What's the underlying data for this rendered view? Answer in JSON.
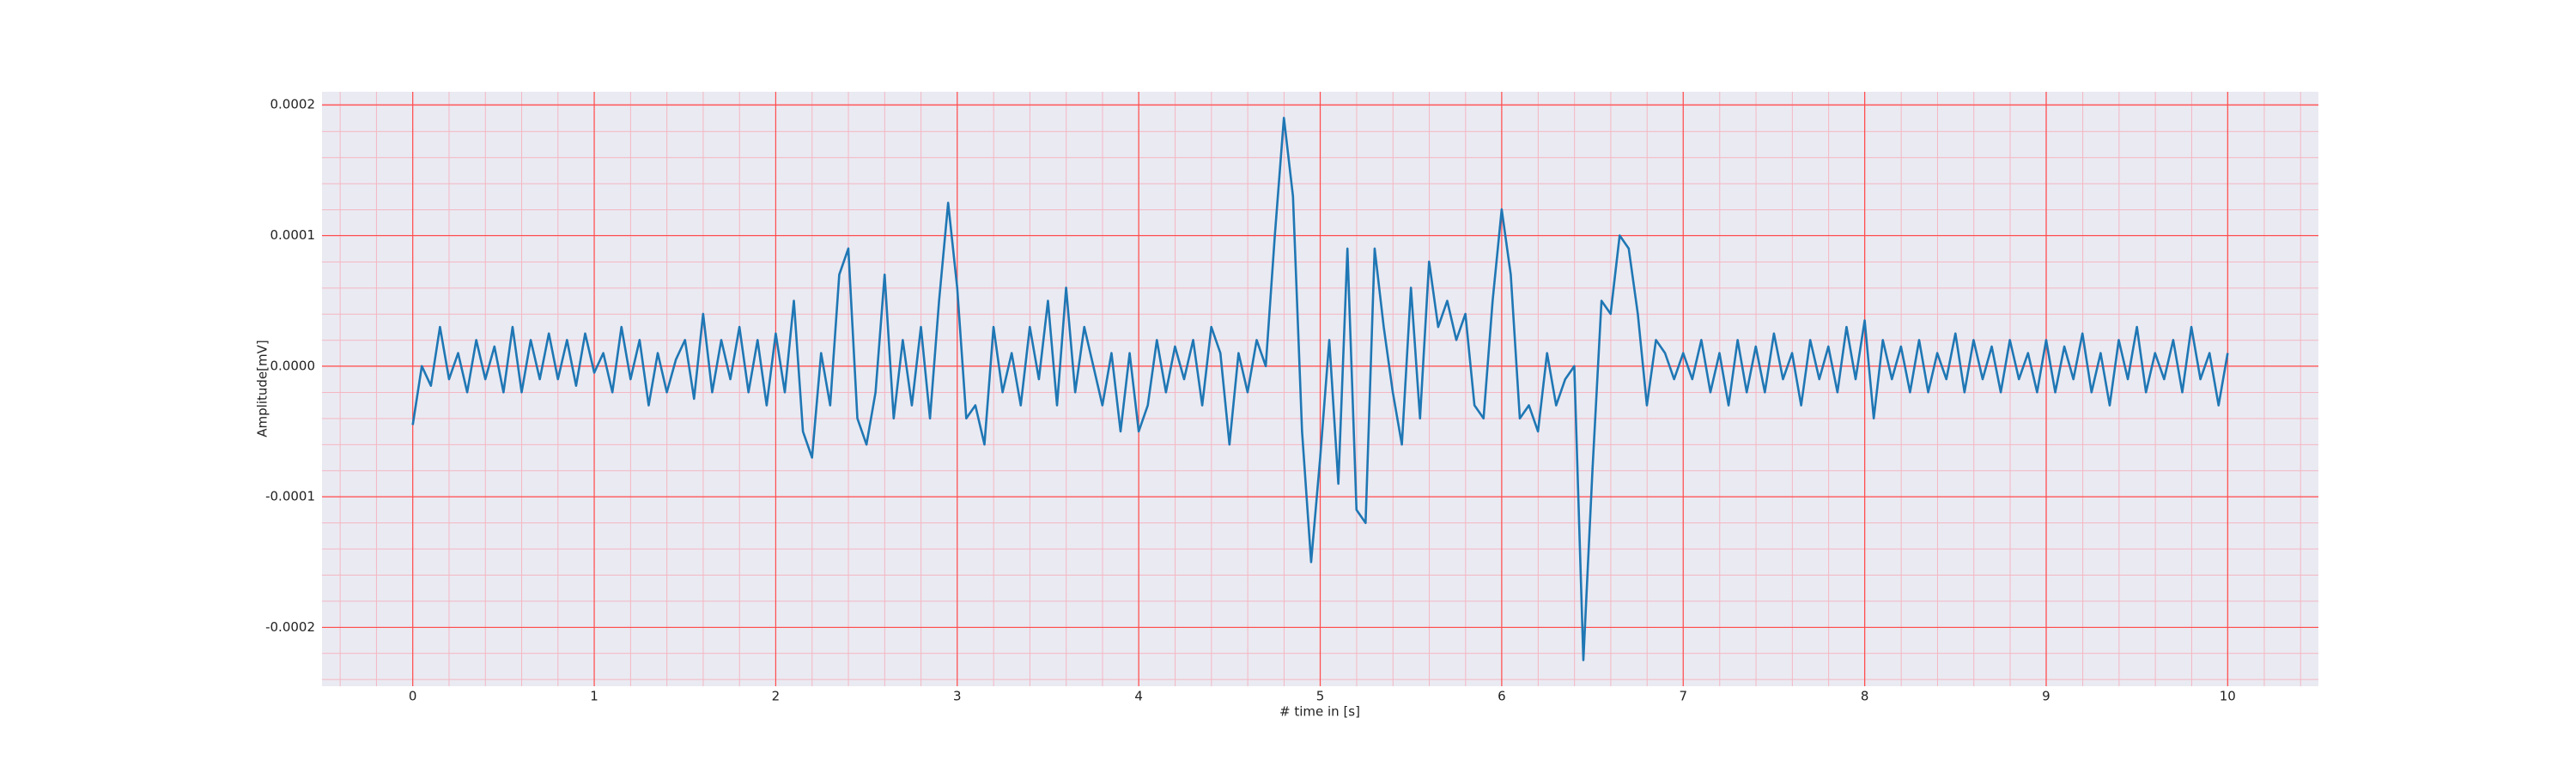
{
  "chart_data": {
    "type": "line",
    "xlabel": "# time in [s]",
    "ylabel": "Amplitude[mV]",
    "color": "#1f77b4",
    "grid": true,
    "grid_color": "#ff4d4d",
    "xlim": [
      -0.5,
      10.5
    ],
    "ylim": [
      -0.000245,
      0.00021
    ],
    "xticks": [
      0,
      1,
      2,
      3,
      4,
      5,
      6,
      7,
      8,
      9,
      10
    ],
    "yticks": [
      0.0002,
      0.0001,
      {
        "value": 0,
        "label": "0.0000"
      },
      -0.0001,
      -0.0002
    ],
    "x": [
      0,
      0.05,
      0.1,
      0.15,
      0.2,
      0.25,
      0.3,
      0.35,
      0.4,
      0.45,
      0.5,
      0.55,
      0.6,
      0.65,
      0.7,
      0.75,
      0.8,
      0.85,
      0.9,
      0.95,
      1,
      1.05,
      1.1,
      1.15,
      1.2,
      1.25,
      1.3,
      1.35,
      1.4,
      1.45,
      1.5,
      1.55,
      1.6,
      1.65,
      1.7,
      1.75,
      1.8,
      1.85,
      1.9,
      1.95,
      2,
      2.05,
      2.1,
      2.15,
      2.2,
      2.25,
      2.3,
      2.35,
      2.4,
      2.45,
      2.5,
      2.55,
      2.6,
      2.65,
      2.7,
      2.75,
      2.8,
      2.85,
      2.9,
      2.95,
      3,
      3.05,
      3.1,
      3.15,
      3.2,
      3.25,
      3.3,
      3.35,
      3.4,
      3.45,
      3.5,
      3.55,
      3.6,
      3.65,
      3.7,
      3.75,
      3.8,
      3.85,
      3.9,
      3.95,
      4,
      4.05,
      4.1,
      4.15,
      4.2,
      4.25,
      4.3,
      4.35,
      4.4,
      4.45,
      4.5,
      4.55,
      4.6,
      4.65,
      4.7,
      4.75,
      4.8,
      4.85,
      4.9,
      4.95,
      5,
      5.05,
      5.1,
      5.15,
      5.2,
      5.25,
      5.3,
      5.35,
      5.4,
      5.45,
      5.5,
      5.55,
      5.6,
      5.65,
      5.7,
      5.75,
      5.8,
      5.85,
      5.9,
      5.95,
      6,
      6.05,
      6.1,
      6.15,
      6.2,
      6.25,
      6.3,
      6.35,
      6.4,
      6.45,
      6.5,
      6.55,
      6.6,
      6.65,
      6.7,
      6.75,
      6.8,
      6.85,
      6.9,
      6.95,
      7,
      7.05,
      7.1,
      7.15,
      7.2,
      7.25,
      7.3,
      7.35,
      7.4,
      7.45,
      7.5,
      7.55,
      7.6,
      7.65,
      7.7,
      7.75,
      7.8,
      7.85,
      7.9,
      7.95,
      8,
      8.05,
      8.1,
      8.15,
      8.2,
      8.25,
      8.3,
      8.35,
      8.4,
      8.45,
      8.5,
      8.55,
      8.6,
      8.65,
      8.7,
      8.75,
      8.8,
      8.85,
      8.9,
      8.95,
      9,
      9.05,
      9.1,
      9.15,
      9.2,
      9.25,
      9.3,
      9.35,
      9.4,
      9.45,
      9.5,
      9.55,
      9.6,
      9.65,
      9.7,
      9.75,
      9.8,
      9.85,
      9.9,
      9.95,
      10
    ],
    "values": [
      -4.5e-05,
      0,
      -1.5e-05,
      3e-05,
      -1e-05,
      1e-05,
      -2e-05,
      2e-05,
      -1e-05,
      1.5e-05,
      -2e-05,
      3e-05,
      -2e-05,
      2e-05,
      -1e-05,
      2.5e-05,
      -1e-05,
      2e-05,
      -1.5e-05,
      2.5e-05,
      -5e-06,
      1e-05,
      -2e-05,
      3e-05,
      -1e-05,
      2e-05,
      -3e-05,
      1e-05,
      -2e-05,
      5e-06,
      2e-05,
      -2.5e-05,
      4e-05,
      -2e-05,
      2e-05,
      -1e-05,
      3e-05,
      -2e-05,
      2e-05,
      -3e-05,
      2.5e-05,
      -2e-05,
      5e-05,
      -5e-05,
      -7e-05,
      1e-05,
      -3e-05,
      7e-05,
      9e-05,
      -4e-05,
      -6e-05,
      -2e-05,
      7e-05,
      -4e-05,
      2e-05,
      -3e-05,
      3e-05,
      -4e-05,
      5e-05,
      0.000125,
      6e-05,
      -4e-05,
      -3e-05,
      -6e-05,
      3e-05,
      -2e-05,
      1e-05,
      -3e-05,
      3e-05,
      -1e-05,
      5e-05,
      -3e-05,
      6e-05,
      -2e-05,
      3e-05,
      0,
      -3e-05,
      1e-05,
      -5e-05,
      1e-05,
      -5e-05,
      -3e-05,
      2e-05,
      -2e-05,
      1.5e-05,
      -1e-05,
      2e-05,
      -3e-05,
      3e-05,
      1e-05,
      -6e-05,
      1e-05,
      -2e-05,
      2e-05,
      0,
      0.0001,
      0.00019,
      0.00013,
      -5e-05,
      -0.00015,
      -7e-05,
      2e-05,
      -9e-05,
      9e-05,
      -0.00011,
      -0.00012,
      9e-05,
      3e-05,
      -2e-05,
      -6e-05,
      6e-05,
      -4e-05,
      8e-05,
      3e-05,
      5e-05,
      2e-05,
      4e-05,
      -3e-05,
      -4e-05,
      5e-05,
      0.00012,
      7e-05,
      -4e-05,
      -3e-05,
      -5e-05,
      1e-05,
      -3e-05,
      -1e-05,
      0,
      -0.000225,
      -8e-05,
      5e-05,
      4e-05,
      0.0001,
      9e-05,
      4e-05,
      -3e-05,
      2e-05,
      1e-05,
      -1e-05,
      1e-05,
      -1e-05,
      2e-05,
      -2e-05,
      1e-05,
      -3e-05,
      2e-05,
      -2e-05,
      1.5e-05,
      -2e-05,
      2.5e-05,
      -1e-05,
      1e-05,
      -3e-05,
      2e-05,
      -1e-05,
      1.5e-05,
      -2e-05,
      3e-05,
      -1e-05,
      3.5e-05,
      -4e-05,
      2e-05,
      -1e-05,
      1.5e-05,
      -2e-05,
      2e-05,
      -2e-05,
      1e-05,
      -1e-05,
      2.5e-05,
      -2e-05,
      2e-05,
      -1e-05,
      1.5e-05,
      -2e-05,
      2e-05,
      -1e-05,
      1e-05,
      -2e-05,
      2e-05,
      -2e-05,
      1.5e-05,
      -1e-05,
      2.5e-05,
      -2e-05,
      1e-05,
      -3e-05,
      2e-05,
      -1e-05,
      3e-05,
      -2e-05,
      1e-05,
      -1e-05,
      2e-05,
      -2e-05,
      3e-05,
      -1e-05,
      1e-05,
      -3e-05,
      1e-05
    ]
  }
}
